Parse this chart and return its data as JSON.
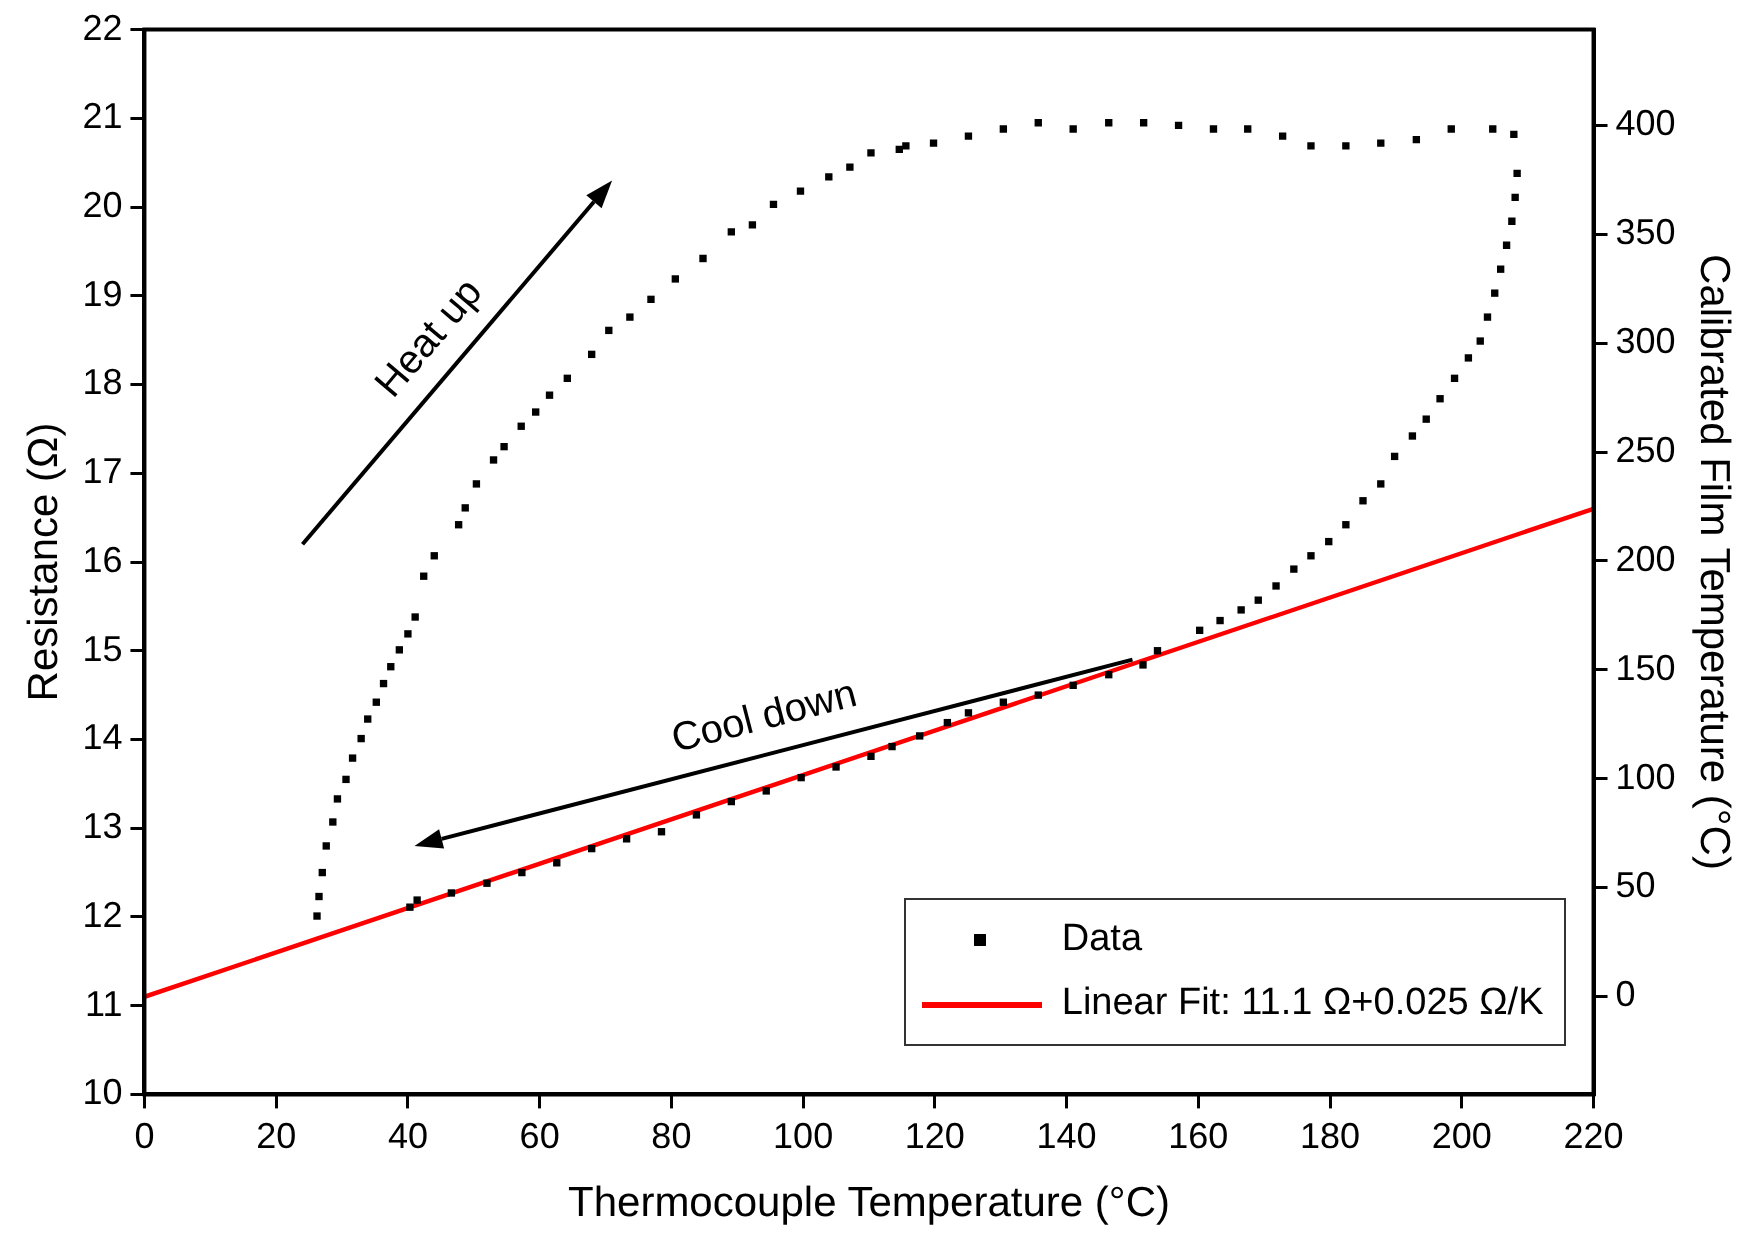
{
  "chart_data": {
    "type": "scatter",
    "xlabel": "Thermocouple Temperature (°C)",
    "ylabel": "Resistance (Ω)",
    "y2label": "Calibrated Film Temperature (°C)",
    "xlim": [
      0,
      220
    ],
    "xticks": [
      0,
      20,
      40,
      60,
      80,
      100,
      120,
      140,
      160,
      180,
      200,
      220
    ],
    "ylim": [
      10,
      22
    ],
    "yticks": [
      10,
      11,
      12,
      13,
      14,
      15,
      16,
      17,
      18,
      19,
      20,
      21,
      22
    ],
    "y2lim": [
      -45,
      444
    ],
    "y2ticks": [
      0,
      50,
      100,
      150,
      200,
      250,
      300,
      350,
      400
    ],
    "grid": false,
    "legend": "bottom right",
    "annotations": [
      "Heat up",
      "Cool down"
    ],
    "series": [
      {
        "name": "Data",
        "type": "scatter",
        "marker": "square",
        "color": "#000000",
        "x": [
          26.2,
          26.5,
          27.0,
          27.6,
          28.6,
          29.3,
          30.6,
          31.6,
          32.9,
          33.9,
          35.2,
          36.3,
          37.4,
          38.7,
          40.0,
          41.1,
          42.4,
          44.0,
          47.7,
          48.7,
          50.4,
          53.0,
          54.6,
          57.2,
          59.4,
          61.5,
          64.2,
          67.9,
          70.5,
          73.7,
          76.9,
          80.6,
          84.8,
          89.1,
          92.3,
          95.5,
          99.6,
          103.9,
          107.1,
          110.3,
          114.6,
          115.6,
          119.8,
          125.1,
          130.4,
          135.7,
          141.0,
          146.4,
          151.7,
          157.0,
          162.3,
          167.5,
          172.8,
          177.1,
          182.4,
          187.7,
          193.1,
          198.4,
          204.7,
          207.9,
          208.4,
          208.1,
          207.6,
          206.8,
          205.9,
          205.0,
          203.9,
          202.8,
          201.0,
          198.9,
          196.7,
          194.6,
          192.5,
          189.8,
          187.7,
          185.0,
          182.4,
          179.8,
          177.1,
          174.5,
          171.8,
          169.1,
          166.5,
          163.3,
          160.2,
          153.8,
          151.6,
          146.4,
          141.0,
          135.7,
          130.4,
          125.1,
          121.9,
          117.7,
          113.5,
          110.3,
          105.0,
          99.7,
          94.4,
          89.1,
          83.8,
          78.5,
          73.2,
          67.9,
          62.6,
          57.3,
          52.0,
          46.6,
          41.4,
          40.3
        ],
        "values": [
          12.01,
          12.23,
          12.5,
          12.8,
          13.07,
          13.33,
          13.55,
          13.79,
          14.01,
          14.23,
          14.42,
          14.63,
          14.82,
          15.01,
          15.19,
          15.38,
          15.84,
          16.07,
          16.42,
          16.61,
          16.88,
          17.15,
          17.3,
          17.53,
          17.69,
          17.88,
          18.07,
          18.34,
          18.61,
          18.76,
          18.96,
          19.19,
          19.42,
          19.72,
          19.8,
          20.03,
          20.18,
          20.34,
          20.45,
          20.61,
          20.65,
          20.69,
          20.72,
          20.8,
          20.88,
          20.95,
          20.88,
          20.95,
          20.95,
          20.92,
          20.88,
          20.88,
          20.8,
          20.69,
          20.69,
          20.72,
          20.76,
          20.88,
          20.88,
          20.82,
          20.38,
          20.11,
          19.84,
          19.57,
          19.3,
          19.03,
          18.76,
          18.49,
          18.3,
          18.07,
          17.84,
          17.61,
          17.42,
          17.19,
          16.88,
          16.69,
          16.42,
          16.23,
          16.07,
          15.92,
          15.73,
          15.57,
          15.46,
          15.34,
          15.23,
          15.0,
          14.84,
          14.73,
          14.61,
          14.5,
          14.42,
          14.3,
          14.19,
          14.04,
          13.92,
          13.81,
          13.69,
          13.57,
          13.42,
          13.3,
          13.15,
          12.96,
          12.88,
          12.77,
          12.61,
          12.5,
          12.38,
          12.27,
          12.19,
          12.11
        ]
      },
      {
        "name": "Linear Fit: 11.1 Ω+0.025 Ω/K",
        "type": "line",
        "marker": "none",
        "color": "#ff0000",
        "x": [
          0,
          220
        ],
        "values": [
          11.1,
          16.6
        ]
      }
    ]
  }
}
